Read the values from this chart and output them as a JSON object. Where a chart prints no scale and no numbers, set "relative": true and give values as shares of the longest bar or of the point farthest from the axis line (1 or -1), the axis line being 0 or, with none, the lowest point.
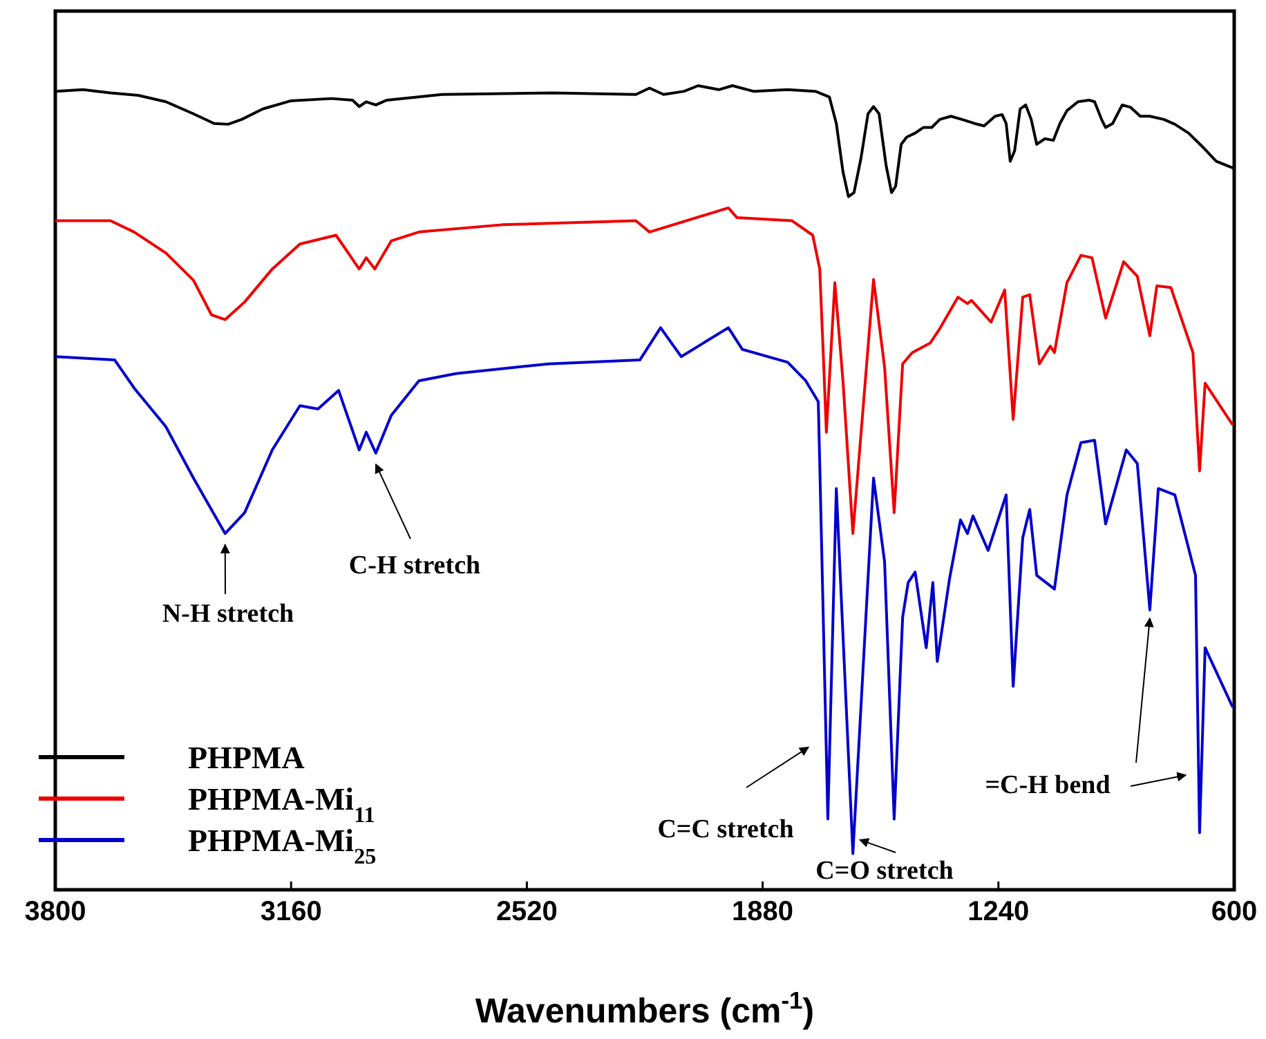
{
  "chart_data": {
    "type": "line",
    "relative": true,
    "xlabel": "Wavenumbers (cm$^{-1}$)",
    "xlim": [
      3800,
      600
    ],
    "xticks": [
      3800,
      3160,
      2520,
      1880,
      1240,
      600
    ],
    "legend": "bottom left",
    "grid": false,
    "marker": "none",
    "line_style": "solid",
    "series": [
      {
        "name": "PHPMA",
        "color": "#000000",
        "x": [
          3800,
          3725,
          3650,
          3575,
          3500,
          3425,
          3369,
          3331,
          3294,
          3237,
          3162,
          3050,
          2993,
          2975,
          2956,
          2930,
          2900,
          2750,
          2449,
          2224,
          2187,
          2149,
          2093,
          2055,
          1999,
          1962,
          1905,
          1812,
          1737,
          1699,
          1680,
          1662,
          1647,
          1632,
          1613,
          1594,
          1579,
          1564,
          1545,
          1530,
          1519,
          1504,
          1489,
          1466,
          1444,
          1421,
          1399,
          1369,
          1339,
          1305,
          1279,
          1249,
          1230,
          1219,
          1208,
          1196,
          1181,
          1166,
          1151,
          1136,
          1114,
          1091,
          1073,
          1054,
          1024,
          994,
          979,
          960,
          949,
          930,
          904,
          881,
          855,
          829,
          791,
          761,
          724,
          686,
          649,
          600
        ],
        "values": [
          0.993,
          0.995,
          0.991,
          0.988,
          0.98,
          0.965,
          0.953,
          0.952,
          0.958,
          0.971,
          0.981,
          0.984,
          0.982,
          0.974,
          0.98,
          0.976,
          0.982,
          0.989,
          0.991,
          0.989,
          0.997,
          0.989,
          0.993,
          1,
          0.995,
          1,
          0.993,
          0.995,
          0.993,
          0.986,
          0.953,
          0.893,
          0.862,
          0.867,
          0.91,
          0.965,
          0.974,
          0.965,
          0.901,
          0.867,
          0.875,
          0.927,
          0.936,
          0.941,
          0.948,
          0.948,
          0.958,
          0.962,
          0.958,
          0.953,
          0.95,
          0.962,
          0.964,
          0.953,
          0.906,
          0.919,
          0.971,
          0.976,
          0.958,
          0.927,
          0.934,
          0.932,
          0.953,
          0.969,
          0.98,
          0.982,
          0.98,
          0.958,
          0.948,
          0.953,
          0.976,
          0.973,
          0.962,
          0.962,
          0.958,
          0.952,
          0.941,
          0.924,
          0.906,
          0.897
        ]
      },
      {
        "name": "PHPMA-Mi$_{11}$",
        "color": "#ee0000",
        "x": [
          3800,
          3650,
          3586,
          3500,
          3425,
          3376,
          3339,
          3286,
          3211,
          3136,
          3038,
          2975,
          2956,
          2933,
          2888,
          2813,
          2588,
          2224,
          2187,
          1973,
          1950,
          1800,
          1744,
          1725,
          1714,
          1707,
          1684,
          1662,
          1635,
          1579,
          1549,
          1523,
          1500,
          1474,
          1425,
          1399,
          1350,
          1324,
          1313,
          1260,
          1223,
          1200,
          1174,
          1155,
          1129,
          1099,
          1088,
          1054,
          1016,
          986,
          949,
          900,
          863,
          829,
          810,
          772,
          712,
          694,
          679,
          604
        ],
        "values": [
          0.832,
          0.832,
          0.818,
          0.792,
          0.758,
          0.715,
          0.709,
          0.731,
          0.772,
          0.803,
          0.814,
          0.772,
          0.786,
          0.772,
          0.807,
          0.818,
          0.827,
          0.832,
          0.818,
          0.848,
          0.836,
          0.832,
          0.814,
          0.772,
          0.65,
          0.569,
          0.755,
          0.633,
          0.443,
          0.759,
          0.65,
          0.469,
          0.654,
          0.668,
          0.68,
          0.698,
          0.737,
          0.729,
          0.733,
          0.706,
          0.746,
          0.585,
          0.737,
          0.74,
          0.654,
          0.676,
          0.668,
          0.755,
          0.789,
          0.786,
          0.711,
          0.781,
          0.763,
          0.689,
          0.751,
          0.749,
          0.668,
          0.521,
          0.63,
          0.578
        ]
      },
      {
        "name": "PHPMA-Mi$_{25}$",
        "color": "#0000cc",
        "x": [
          3800,
          3639,
          3586,
          3500,
          3425,
          3339,
          3286,
          3211,
          3136,
          3087,
          3031,
          2975,
          2956,
          2930,
          2888,
          2813,
          2712,
          2461,
          2213,
          2157,
          2101,
          1973,
          1935,
          1812,
          1763,
          1729,
          1725,
          1703,
          1680,
          1635,
          1579,
          1549,
          1523,
          1500,
          1485,
          1466,
          1436,
          1418,
          1406,
          1373,
          1343,
          1324,
          1309,
          1268,
          1219,
          1200,
          1174,
          1155,
          1136,
          1088,
          1054,
          1016,
          979,
          949,
          893,
          863,
          829,
          806,
          761,
          705,
          694,
          679,
          604
        ],
        "values": [
          0.663,
          0.659,
          0.624,
          0.576,
          0.512,
          0.443,
          0.469,
          0.547,
          0.602,
          0.598,
          0.621,
          0.547,
          0.569,
          0.543,
          0.59,
          0.633,
          0.642,
          0.654,
          0.659,
          0.699,
          0.663,
          0.699,
          0.672,
          0.656,
          0.633,
          0.607,
          0.53,
          0.088,
          0.499,
          0.045,
          0.512,
          0.408,
          0.088,
          0.339,
          0.382,
          0.395,
          0.301,
          0.382,
          0.284,
          0.386,
          0.46,
          0.443,
          0.465,
          0.422,
          0.491,
          0.253,
          0.438,
          0.473,
          0.391,
          0.374,
          0.491,
          0.556,
          0.559,
          0.455,
          0.547,
          0.53,
          0.348,
          0.499,
          0.491,
          0.391,
          0.071,
          0.301,
          0.227
        ]
      }
    ],
    "annotations": [
      {
        "text": "N-H stretch",
        "x": 3339,
        "y": 0.443
      },
      {
        "text": "C-H stretch",
        "x": 2930,
        "y": 0.543
      },
      {
        "text": "C=C stretch",
        "x": 1703,
        "y": 0.088
      },
      {
        "text": "C=O stretch",
        "x": 1635,
        "y": 0.045
      },
      {
        "text": "=C-H bend",
        "x": 829,
        "y": 0.348
      }
    ]
  }
}
